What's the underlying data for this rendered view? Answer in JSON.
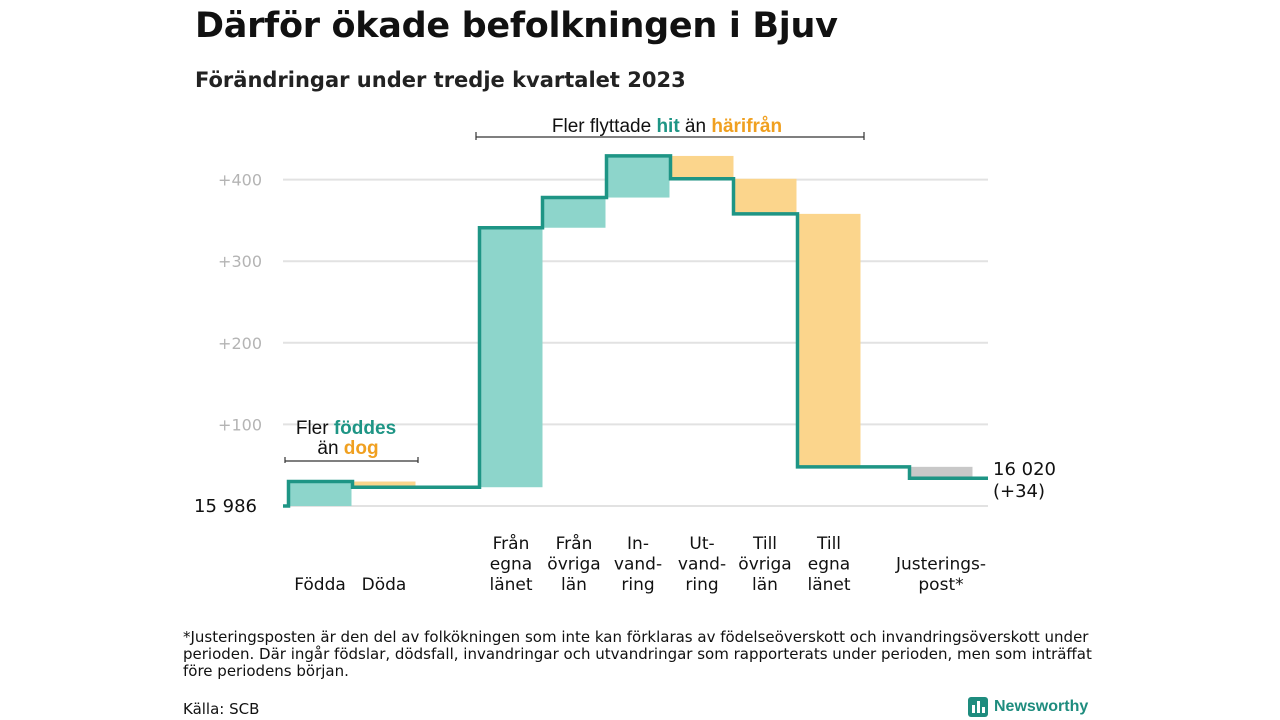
{
  "title": "Därför ökade befolkningen i Bjuv",
  "subtitle": "Förändringar under tredje kvartalet 2023",
  "colors": {
    "increase": "#8dd5cb",
    "decrease": "#fbd58c",
    "adjustment": "#c8c8c8",
    "line": "#1e9585",
    "grid": "#e2e2e2"
  },
  "chart_data": {
    "type": "waterfall",
    "start_label": "15  986",
    "start_value": 15986,
    "end_label": "16 020",
    "end_change_label": "(+34)",
    "y_ticks": [
      "+100",
      "+200",
      "+300",
      "+400"
    ],
    "y_tick_values": [
      100,
      200,
      300,
      400
    ],
    "ylim": [
      0,
      430
    ],
    "steps": [
      {
        "label": [
          "Födda"
        ],
        "change": 30,
        "kind": "increase"
      },
      {
        "label": [
          "Döda"
        ],
        "change": -7,
        "kind": "decrease"
      },
      {
        "label": [
          "Från",
          "egna",
          "länet"
        ],
        "change": 318,
        "kind": "increase"
      },
      {
        "label": [
          "Från",
          "övriga",
          "län"
        ],
        "change": 37,
        "kind": "increase"
      },
      {
        "label": [
          "In-",
          "vand-",
          "ring"
        ],
        "change": 51,
        "kind": "increase"
      },
      {
        "label": [
          "Ut-",
          "vand-",
          "ring"
        ],
        "change": -28,
        "kind": "decrease"
      },
      {
        "label": [
          "Till",
          "övriga",
          "län"
        ],
        "change": -43,
        "kind": "decrease"
      },
      {
        "label": [
          "Till",
          "egna",
          "länet"
        ],
        "change": -310,
        "kind": "decrease"
      },
      {
        "label": [
          "Justerings-",
          "post*"
        ],
        "change": -14,
        "kind": "adjustment"
      }
    ],
    "annotations": [
      {
        "parts": [
          "Fler ",
          "föddes"
        ],
        "line2_parts": [
          "än ",
          "dog"
        ]
      },
      {
        "parts": [
          "Fler flyttade ",
          "hit",
          "  än ",
          "härifrån"
        ]
      }
    ]
  },
  "footnote": "*Justeringsposten är den del av folkökningen som inte kan förklaras av födelseöverskott och invandringsöverskott under perioden. Där ingår födslar, dödsfall, invandringar och utvandringar som rapporterats under perioden, men som inträffat före periodens början.",
  "source": "Källa: SCB",
  "logo_text": "Newsworthy"
}
